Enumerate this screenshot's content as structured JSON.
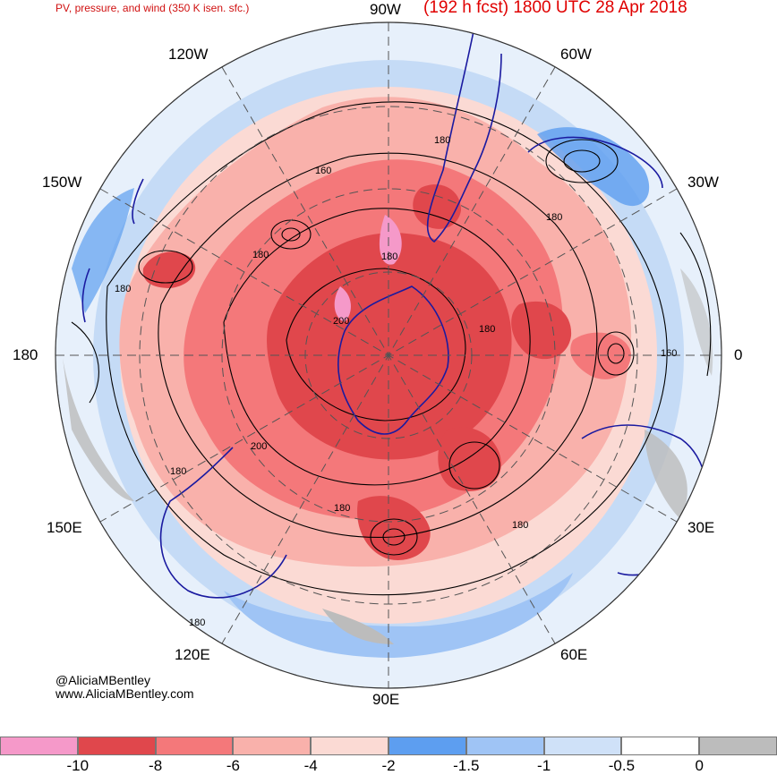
{
  "header": {
    "product_title": "PV, pressure, and wind (350 K isen. sfc.)",
    "forecast_title": "(192 h fcst) 1800 UTC 28 Apr 2018"
  },
  "map": {
    "projection": "polar-stereographic-south",
    "longitude_labels": {
      "top": "90W",
      "upper_left": "120W",
      "upper_right": "60W",
      "left_upper": "150W",
      "right_upper": "30W",
      "left": "180",
      "right": "0",
      "left_lower": "150E",
      "right_lower": "30E",
      "lower_left": "120E",
      "lower_right": "60E",
      "bottom": "90E"
    },
    "contour_labels": [
      "180",
      "160",
      "180",
      "180",
      "180",
      "180",
      "200",
      "180",
      "160",
      "200",
      "180",
      "180",
      "180",
      "180"
    ]
  },
  "credits": {
    "handle": "@AliciaMBentley",
    "website": "www.AliciaMBentley.com"
  },
  "colorbar": {
    "colors": [
      "#f599c9",
      "#e0474c",
      "#f4787a",
      "#f9b1ab",
      "#fbdad4",
      "#5d9ef0",
      "#9fc4f5",
      "#cfe1f8",
      "#ffffff",
      "#bcbcbc"
    ],
    "ticks": [
      "-10",
      "-8",
      "-6",
      "-4",
      "-2",
      "-1.5",
      "-1",
      "-0.5",
      "0"
    ]
  },
  "colors": {
    "title": "#e00000",
    "coastline": "#1a1aa0",
    "contour": "#000000",
    "grid": "#555555"
  }
}
